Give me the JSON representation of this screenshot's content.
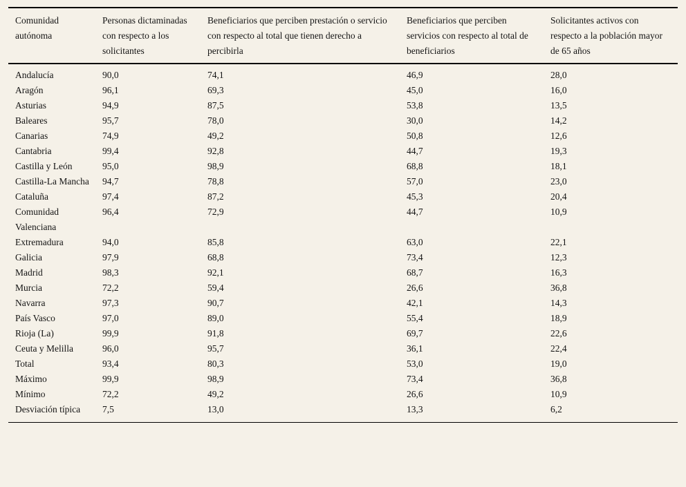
{
  "colors": {
    "page_background": "#f5f1e8",
    "text": "#141414",
    "rule": "#000000"
  },
  "table": {
    "columns": [
      {
        "label": "Comunidad autónoma"
      },
      {
        "label": "Personas dictaminadas con respecto a los solicitantes"
      },
      {
        "label": "Beneficiarios que perciben prestación o servicio con respecto al total que tienen derecho a percibirla"
      },
      {
        "label": "Beneficiarios que perciben servicios con respecto al total de beneficiarios"
      },
      {
        "label": "Solicitantes activos con respecto a la población mayor de 65 años"
      }
    ],
    "rows": [
      {
        "name": "Andalucía",
        "values": [
          "90,0",
          "74,1",
          "46,9",
          "28,0"
        ]
      },
      {
        "name": "Aragón",
        "values": [
          "96,1",
          "69,3",
          "45,0",
          "16,0"
        ]
      },
      {
        "name": "Asturias",
        "values": [
          "94,9",
          "87,5",
          "53,8",
          "13,5"
        ]
      },
      {
        "name": "Baleares",
        "values": [
          "95,7",
          "78,0",
          "30,0",
          "14,2"
        ]
      },
      {
        "name": "Canarias",
        "values": [
          "74,9",
          "49,2",
          "50,8",
          "12,6"
        ]
      },
      {
        "name": "Cantabria",
        "values": [
          "99,4",
          "92,8",
          "44,7",
          "19,3"
        ]
      },
      {
        "name": "Castilla y León",
        "values": [
          "95,0",
          "98,9",
          "68,8",
          "18,1"
        ]
      },
      {
        "name": "Castilla-La Mancha",
        "values": [
          "94,7",
          "78,8",
          "57,0",
          "23,0"
        ]
      },
      {
        "name": "Cataluña",
        "values": [
          "97,4",
          "87,2",
          "45,3",
          "20,4"
        ]
      },
      {
        "name": "Comunidad Valenciana",
        "values": [
          "96,4",
          "72,9",
          "44,7",
          "10,9"
        ]
      },
      {
        "name": "Extremadura",
        "values": [
          "94,0",
          "85,8",
          "63,0",
          "22,1"
        ]
      },
      {
        "name": "Galicia",
        "values": [
          "97,9",
          "68,8",
          "73,4",
          "12,3"
        ]
      },
      {
        "name": "Madrid",
        "values": [
          "98,3",
          "92,1",
          "68,7",
          "16,3"
        ]
      },
      {
        "name": "Murcia",
        "values": [
          "72,2",
          "59,4",
          "26,6",
          "36,8"
        ]
      },
      {
        "name": "Navarra",
        "values": [
          "97,3",
          "90,7",
          "42,1",
          "14,3"
        ]
      },
      {
        "name": "País Vasco",
        "values": [
          "97,0",
          "89,0",
          "55,4",
          "18,9"
        ]
      },
      {
        "name": "Rioja (La)",
        "values": [
          "99,9",
          "91,8",
          "69,7",
          "22,6"
        ]
      },
      {
        "name": "Ceuta y Melilla",
        "values": [
          "96,0",
          "95,7",
          "36,1",
          "22,4"
        ]
      },
      {
        "name": "Total",
        "values": [
          "93,4",
          "80,3",
          "53,0",
          "19,0"
        ]
      },
      {
        "name": "Máximo",
        "values": [
          "99,9",
          "98,9",
          "73,4",
          "36,8"
        ]
      },
      {
        "name": "Mínimo",
        "values": [
          "72,2",
          "49,2",
          "26,6",
          "10,9"
        ]
      },
      {
        "name": "Desviación típica",
        "values": [
          "7,5",
          "13,0",
          "13,3",
          "6,2"
        ]
      }
    ]
  }
}
